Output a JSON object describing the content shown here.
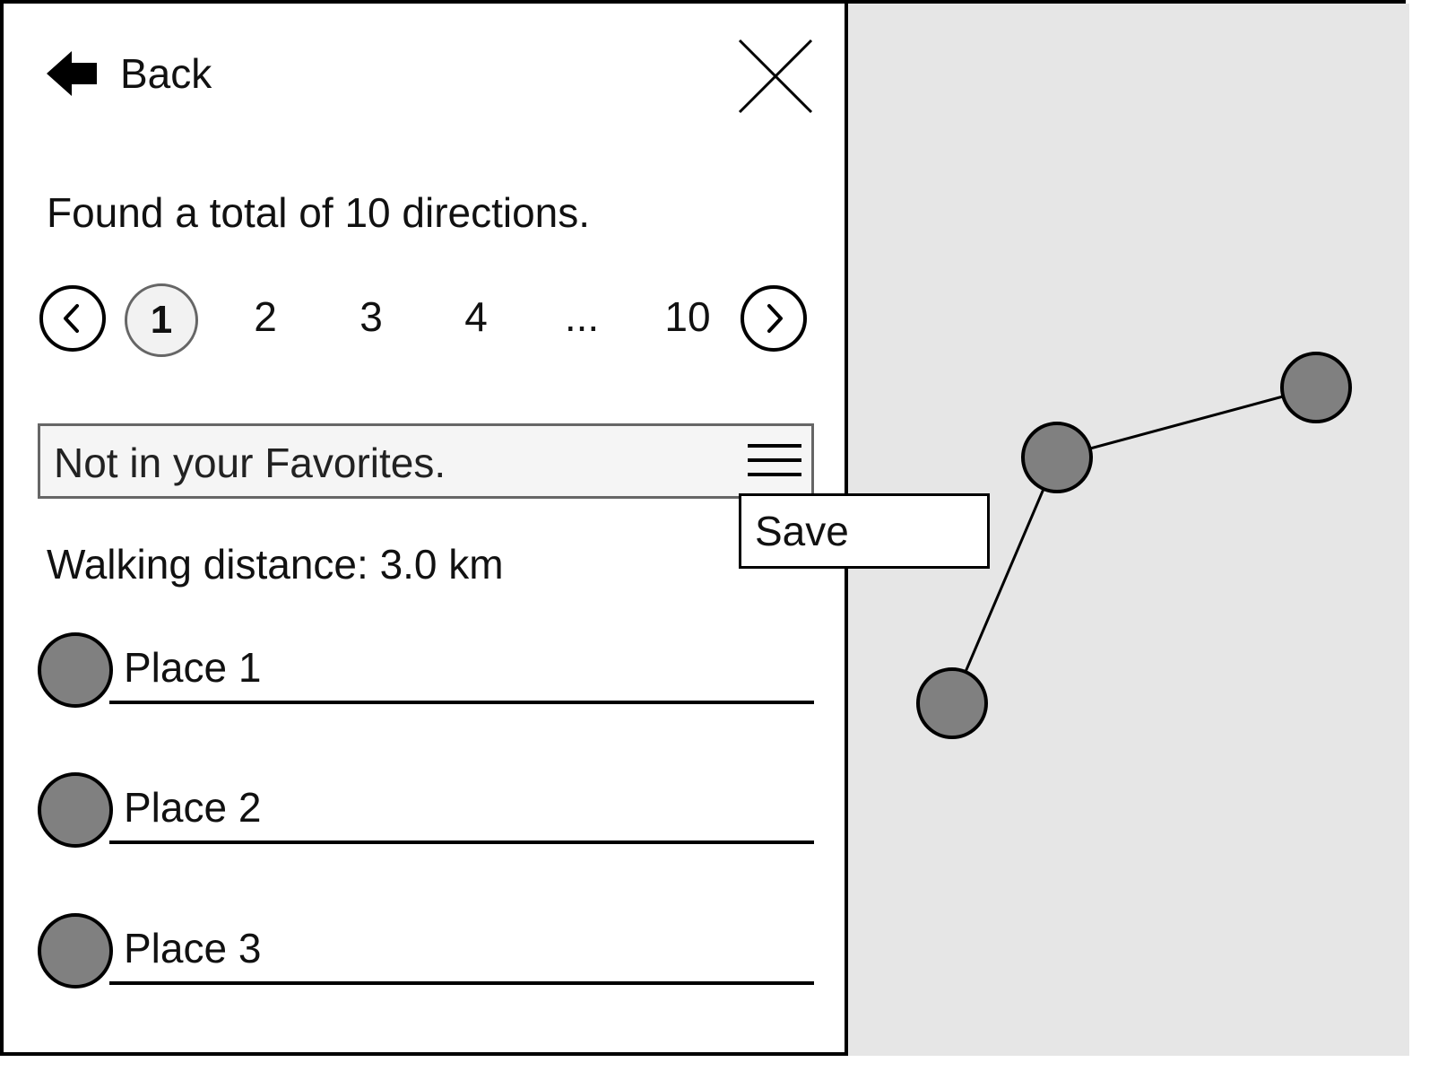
{
  "header": {
    "back_label": "Back",
    "back_icon": "arrow-left-icon",
    "close_icon": "close-icon"
  },
  "summary": "Found a total of 10 directions.",
  "pagination": {
    "prev_icon": "chevron-left-icon",
    "next_icon": "chevron-right-icon",
    "current": "1",
    "pages": [
      "2",
      "3",
      "4",
      "...",
      "10"
    ]
  },
  "favorites": {
    "status": "Not in your Favorites.",
    "menu_icon": "hamburger-menu-icon",
    "menu_items": [
      {
        "label": "Save"
      }
    ]
  },
  "walking_distance": "Walking distance: 3.0 km",
  "places": [
    {
      "label": "Place 1"
    },
    {
      "label": "Place 2"
    },
    {
      "label": "Place 3"
    }
  ],
  "colors": {
    "map_background": "#e6e6e6",
    "marker_fill": "#808080",
    "favorites_bar": "#f5f5f5"
  }
}
